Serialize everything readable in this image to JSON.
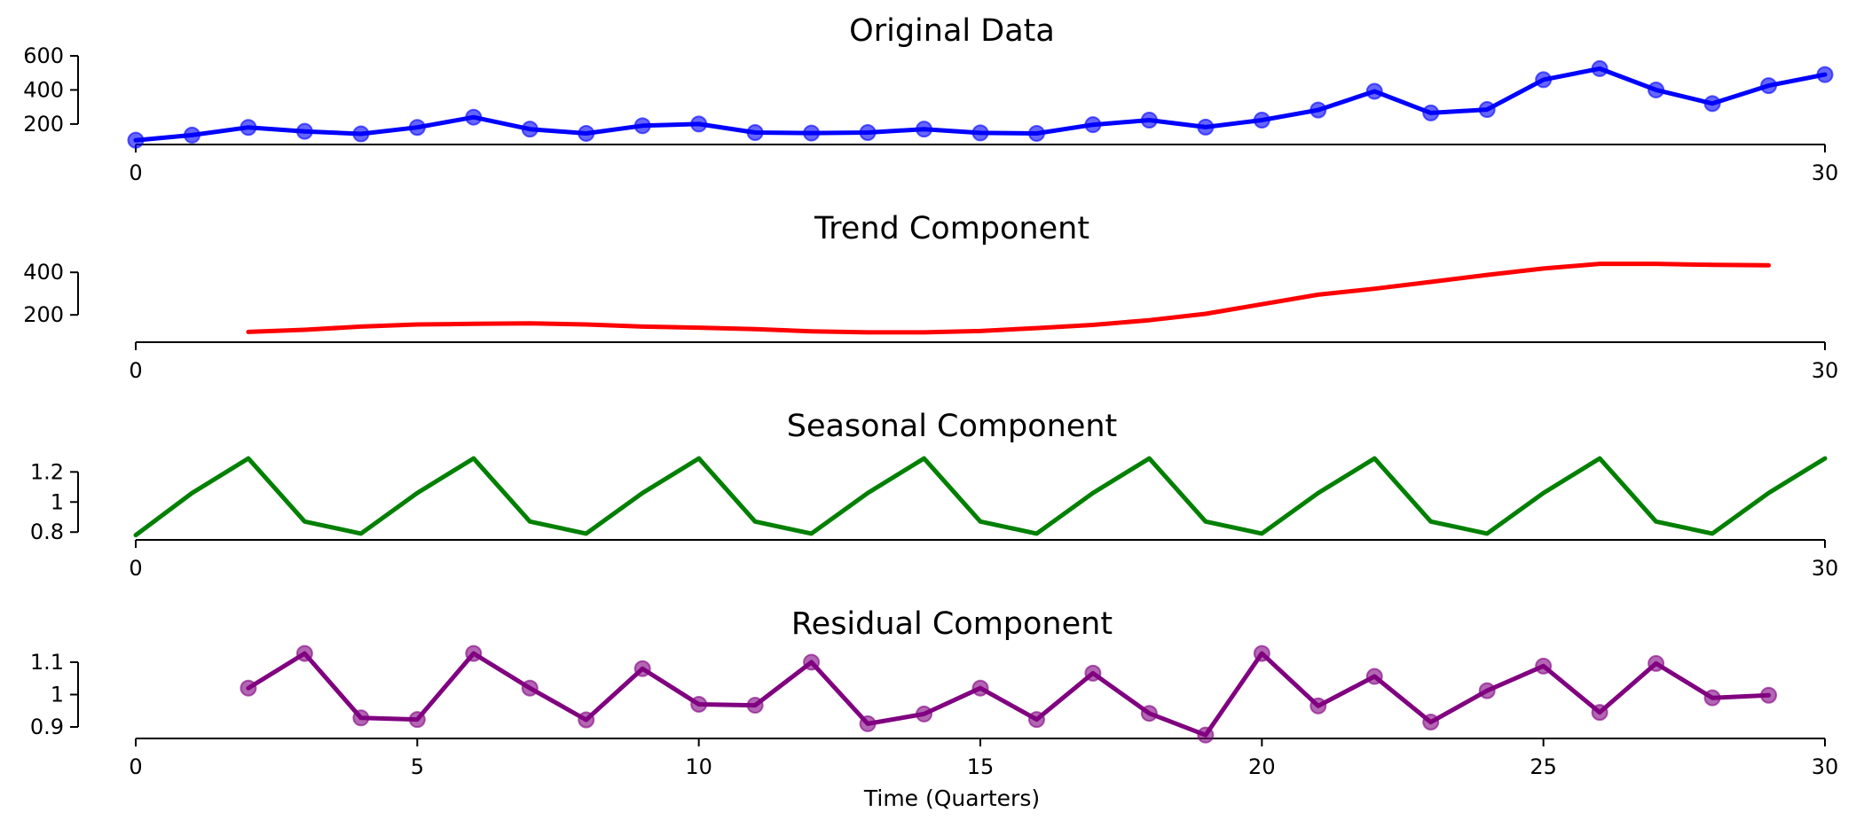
{
  "figure": {
    "xlabel": "Time (Quarters)"
  },
  "chart_data": [
    {
      "type": "line",
      "title": "Original Data",
      "color": "#0000ff",
      "markers": true,
      "xlim": [
        0,
        30
      ],
      "ylim": [
        85,
        600
      ],
      "x_ticks": [
        0,
        30
      ],
      "y_ticks": [
        200,
        400,
        600
      ],
      "x": [
        0,
        1,
        2,
        3,
        4,
        5,
        6,
        7,
        8,
        9,
        10,
        11,
        12,
        13,
        14,
        15,
        16,
        17,
        18,
        19,
        20,
        21,
        22,
        23,
        24,
        25,
        26,
        27,
        28,
        29,
        30
      ],
      "values": [
        105,
        135,
        180,
        157,
        142,
        180,
        240,
        170,
        145,
        190,
        200,
        150,
        147,
        150,
        170,
        148,
        145,
        196,
        223,
        182,
        223,
        282,
        392,
        265,
        285,
        460,
        525,
        400,
        320,
        425,
        490
      ]
    },
    {
      "type": "line",
      "title": "Trend Component",
      "color": "#ff0000",
      "markers": false,
      "xlim": [
        0,
        30
      ],
      "ylim": [
        80,
        480
      ],
      "x_ticks": [
        0,
        30
      ],
      "y_ticks": [
        200,
        400
      ],
      "x": [
        2,
        3,
        4,
        5,
        6,
        7,
        8,
        9,
        10,
        11,
        12,
        13,
        14,
        15,
        16,
        17,
        18,
        19,
        20,
        21,
        22,
        23,
        24,
        25,
        26,
        27,
        28,
        29
      ],
      "values": [
        120,
        130,
        145,
        155,
        158,
        160,
        155,
        145,
        140,
        133,
        123,
        118,
        118,
        124,
        138,
        153,
        175,
        205,
        250,
        295,
        323,
        355,
        388,
        418,
        440,
        440,
        435,
        433
      ]
    },
    {
      "type": "line",
      "title": "Seasonal Component",
      "color": "#008000",
      "markers": false,
      "xlim": [
        0,
        30
      ],
      "ylim": [
        0.76,
        1.32
      ],
      "x_ticks": [
        0,
        30
      ],
      "y_ticks": [
        0.8,
        1.0,
        1.2
      ],
      "x": [
        0,
        1,
        2,
        3,
        4,
        5,
        6,
        7,
        8,
        9,
        10,
        11,
        12,
        13,
        14,
        15,
        16,
        17,
        18,
        19,
        20,
        21,
        22,
        23,
        24,
        25,
        26,
        27,
        28,
        29,
        30
      ],
      "values": [
        0.78,
        1.06,
        1.29,
        0.87,
        0.79,
        1.06,
        1.29,
        0.87,
        0.79,
        1.06,
        1.29,
        0.87,
        0.79,
        1.06,
        1.29,
        0.87,
        0.79,
        1.06,
        1.29,
        0.87,
        0.79,
        1.06,
        1.29,
        0.87,
        0.79,
        1.06,
        1.29,
        0.87,
        0.79,
        1.06,
        1.29
      ]
    },
    {
      "type": "line",
      "title": "Residual Component",
      "color": "#800080",
      "markers": true,
      "xlim": [
        0,
        30
      ],
      "ylim": [
        0.87,
        1.13
      ],
      "x_ticks": [
        0,
        5,
        10,
        15,
        20,
        25,
        30
      ],
      "y_ticks": [
        0.9,
        1.0,
        1.1
      ],
      "xlabel": "Time (Quarters)",
      "x": [
        2,
        3,
        4,
        5,
        6,
        7,
        8,
        9,
        10,
        11,
        12,
        13,
        14,
        15,
        16,
        17,
        18,
        19,
        20,
        21,
        22,
        23,
        24,
        25,
        26,
        27,
        28,
        29
      ],
      "values": [
        1.02,
        1.127,
        0.928,
        0.923,
        1.127,
        1.02,
        0.922,
        1.08,
        0.97,
        0.967,
        1.1,
        0.91,
        0.94,
        1.02,
        0.923,
        1.066,
        0.942,
        0.875,
        1.127,
        0.965,
        1.056,
        0.915,
        1.012,
        1.088,
        0.945,
        1.096,
        0.99,
        0.998
      ]
    }
  ]
}
